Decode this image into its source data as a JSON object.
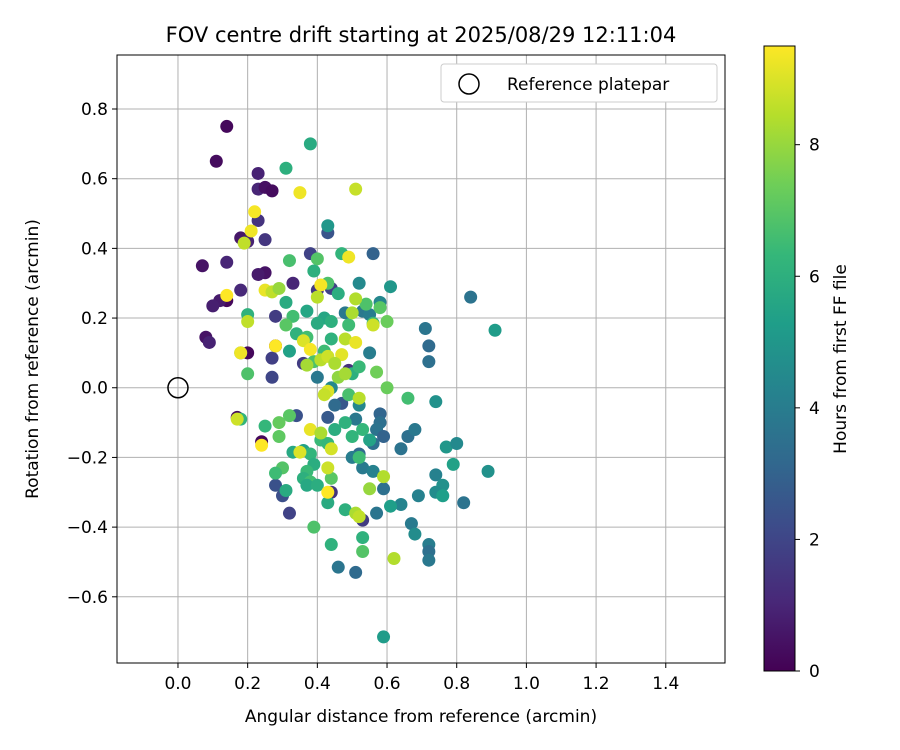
{
  "chart_data": {
    "type": "scatter",
    "title": "FOV centre drift starting at 2025/08/29 12:11:04",
    "xlabel": "Angular distance from reference (arcmin)",
    "ylabel": "Rotation from reference (arcmin)",
    "colorbar_label": "Hours from first FF file",
    "xlim": [
      -0.175,
      1.57
    ],
    "ylim": [
      -0.79,
      0.955
    ],
    "x_ticks": [
      "0.0",
      "0.2",
      "0.4",
      "0.6",
      "0.8",
      "1.0",
      "1.2",
      "1.4"
    ],
    "y_ticks": [
      "0.8",
      "0.6",
      "0.4",
      "0.2",
      "0.0",
      "−0.2",
      "−0.4",
      "−0.6"
    ],
    "colorbar_ticks": [
      "0",
      "2",
      "4",
      "6",
      "8"
    ],
    "colorbar_range": [
      0,
      9.5
    ],
    "colormap": [
      "#440154",
      "#482878",
      "#3e4989",
      "#31688e",
      "#26828e",
      "#1f9e89",
      "#35b779",
      "#6ece58",
      "#b5de2b",
      "#fde725"
    ],
    "grid": true,
    "legend": {
      "position": "top-right",
      "entries": [
        "Reference platepar"
      ]
    },
    "reference": {
      "x": 0.0,
      "y": 0.0
    },
    "points": [
      {
        "x": 0.14,
        "y": 0.75,
        "h": 0.2
      },
      {
        "x": 0.11,
        "y": 0.65,
        "h": 0.3
      },
      {
        "x": 0.23,
        "y": 0.615,
        "h": 0.9
      },
      {
        "x": 0.23,
        "y": 0.57,
        "h": 1.0
      },
      {
        "x": 0.25,
        "y": 0.575,
        "h": 0.4
      },
      {
        "x": 0.27,
        "y": 0.565,
        "h": 0.3
      },
      {
        "x": 0.23,
        "y": 0.48,
        "h": 1.4
      },
      {
        "x": 0.18,
        "y": 0.43,
        "h": 0.6
      },
      {
        "x": 0.25,
        "y": 0.425,
        "h": 1.5
      },
      {
        "x": 0.2,
        "y": 0.42,
        "h": 0.9
      },
      {
        "x": 0.14,
        "y": 0.36,
        "h": 1.0
      },
      {
        "x": 0.07,
        "y": 0.35,
        "h": 0.5
      },
      {
        "x": 0.25,
        "y": 0.33,
        "h": 0.5
      },
      {
        "x": 0.23,
        "y": 0.325,
        "h": 0.7
      },
      {
        "x": 0.33,
        "y": 0.3,
        "h": 1.0
      },
      {
        "x": 0.18,
        "y": 0.28,
        "h": 1.1
      },
      {
        "x": 0.14,
        "y": 0.25,
        "h": 0.2
      },
      {
        "x": 0.12,
        "y": 0.25,
        "h": 0.7
      },
      {
        "x": 0.1,
        "y": 0.235,
        "h": 0.8
      },
      {
        "x": 0.28,
        "y": 0.205,
        "h": 1.7
      },
      {
        "x": 0.08,
        "y": 0.145,
        "h": 0.5
      },
      {
        "x": 0.09,
        "y": 0.13,
        "h": 0.9
      },
      {
        "x": 0.28,
        "y": 0.12,
        "h": 0.3
      },
      {
        "x": 0.2,
        "y": 0.1,
        "h": 0.2
      },
      {
        "x": 0.27,
        "y": 0.085,
        "h": 1.8
      },
      {
        "x": 0.27,
        "y": 0.03,
        "h": 2.0
      },
      {
        "x": 0.17,
        "y": -0.085,
        "h": 0.3
      },
      {
        "x": 0.24,
        "y": -0.155,
        "h": 0.2
      },
      {
        "x": 0.38,
        "y": 0.385,
        "h": 1.9
      },
      {
        "x": 0.43,
        "y": 0.445,
        "h": 2.5
      },
      {
        "x": 0.44,
        "y": 0.285,
        "h": 1.9
      },
      {
        "x": 0.4,
        "y": 0.28,
        "h": 1.6
      },
      {
        "x": 0.49,
        "y": 0.05,
        "h": 1.3
      },
      {
        "x": 0.36,
        "y": 0.07,
        "h": 1.7
      },
      {
        "x": 0.34,
        "y": -0.08,
        "h": 2.4
      },
      {
        "x": 0.43,
        "y": -0.085,
        "h": 2.7
      },
      {
        "x": 0.47,
        "y": -0.045,
        "h": 2.6
      },
      {
        "x": 0.28,
        "y": -0.28,
        "h": 2.4
      },
      {
        "x": 0.3,
        "y": -0.31,
        "h": 2.3
      },
      {
        "x": 0.32,
        "y": -0.36,
        "h": 1.9
      },
      {
        "x": 0.44,
        "y": -0.3,
        "h": 1.5
      },
      {
        "x": 0.53,
        "y": -0.38,
        "h": 1.7
      },
      {
        "x": 0.56,
        "y": 0.385,
        "h": 3.0
      },
      {
        "x": 0.52,
        "y": 0.3,
        "h": 4.5
      },
      {
        "x": 0.53,
        "y": 0.22,
        "h": 3.8
      },
      {
        "x": 0.55,
        "y": 0.21,
        "h": 4.0
      },
      {
        "x": 0.58,
        "y": 0.245,
        "h": 4.4
      },
      {
        "x": 0.48,
        "y": 0.215,
        "h": 3.8
      },
      {
        "x": 0.84,
        "y": 0.26,
        "h": 3.6
      },
      {
        "x": 0.71,
        "y": 0.17,
        "h": 3.7
      },
      {
        "x": 0.72,
        "y": 0.12,
        "h": 3.3
      },
      {
        "x": 0.72,
        "y": 0.075,
        "h": 3.5
      },
      {
        "x": 0.55,
        "y": 0.1,
        "h": 4.0
      },
      {
        "x": 0.4,
        "y": 0.03,
        "h": 3.8
      },
      {
        "x": 0.44,
        "y": 0.0,
        "h": 4.5
      },
      {
        "x": 0.45,
        "y": -0.05,
        "h": 3.3
      },
      {
        "x": 0.52,
        "y": -0.05,
        "h": 4.4
      },
      {
        "x": 0.51,
        "y": -0.09,
        "h": 3.8
      },
      {
        "x": 0.58,
        "y": -0.075,
        "h": 3.1
      },
      {
        "x": 0.58,
        "y": -0.1,
        "h": 3.5
      },
      {
        "x": 0.57,
        "y": -0.12,
        "h": 3.6
      },
      {
        "x": 0.59,
        "y": -0.14,
        "h": 3.0
      },
      {
        "x": 0.56,
        "y": -0.16,
        "h": 3.5
      },
      {
        "x": 0.52,
        "y": -0.19,
        "h": 3.3
      },
      {
        "x": 0.5,
        "y": -0.2,
        "h": 4.0
      },
      {
        "x": 0.53,
        "y": -0.23,
        "h": 3.9
      },
      {
        "x": 0.56,
        "y": -0.24,
        "h": 4.2
      },
      {
        "x": 0.59,
        "y": -0.29,
        "h": 3.5
      },
      {
        "x": 0.64,
        "y": -0.175,
        "h": 3.6
      },
      {
        "x": 0.66,
        "y": -0.14,
        "h": 3.5
      },
      {
        "x": 0.68,
        "y": -0.12,
        "h": 3.8
      },
      {
        "x": 0.74,
        "y": -0.04,
        "h": 4.8
      },
      {
        "x": 0.77,
        "y": -0.17,
        "h": 5.0
      },
      {
        "x": 0.8,
        "y": -0.16,
        "h": 4.5
      },
      {
        "x": 0.79,
        "y": -0.22,
        "h": 5.4
      },
      {
        "x": 0.74,
        "y": -0.25,
        "h": 4.2
      },
      {
        "x": 0.76,
        "y": -0.28,
        "h": 4.8
      },
      {
        "x": 0.74,
        "y": -0.3,
        "h": 4.6
      },
      {
        "x": 0.76,
        "y": -0.31,
        "h": 5.3
      },
      {
        "x": 0.69,
        "y": -0.31,
        "h": 4.2
      },
      {
        "x": 0.64,
        "y": -0.335,
        "h": 4.3
      },
      {
        "x": 0.61,
        "y": -0.34,
        "h": 5.3
      },
      {
        "x": 0.57,
        "y": -0.36,
        "h": 3.7
      },
      {
        "x": 0.67,
        "y": -0.39,
        "h": 3.9
      },
      {
        "x": 0.68,
        "y": -0.42,
        "h": 4.6
      },
      {
        "x": 0.72,
        "y": -0.45,
        "h": 4.0
      },
      {
        "x": 0.72,
        "y": -0.47,
        "h": 3.5
      },
      {
        "x": 0.72,
        "y": -0.495,
        "h": 3.8
      },
      {
        "x": 0.82,
        "y": -0.33,
        "h": 3.6
      },
      {
        "x": 0.89,
        "y": -0.24,
        "h": 4.8
      },
      {
        "x": 0.51,
        "y": -0.53,
        "h": 3.3
      },
      {
        "x": 0.46,
        "y": -0.515,
        "h": 3.7
      },
      {
        "x": 0.59,
        "y": -0.715,
        "h": 5.2
      },
      {
        "x": 0.61,
        "y": 0.29,
        "h": 5.0
      },
      {
        "x": 0.91,
        "y": 0.165,
        "h": 5.2
      },
      {
        "x": 0.38,
        "y": 0.7,
        "h": 5.8
      },
      {
        "x": 0.31,
        "y": 0.63,
        "h": 6.0
      },
      {
        "x": 0.43,
        "y": 0.465,
        "h": 5.0
      },
      {
        "x": 0.47,
        "y": 0.385,
        "h": 6.2
      },
      {
        "x": 0.4,
        "y": 0.37,
        "h": 6.9
      },
      {
        "x": 0.32,
        "y": 0.365,
        "h": 6.7
      },
      {
        "x": 0.39,
        "y": 0.335,
        "h": 6.0
      },
      {
        "x": 0.43,
        "y": 0.3,
        "h": 6.8
      },
      {
        "x": 0.46,
        "y": 0.27,
        "h": 5.9
      },
      {
        "x": 0.31,
        "y": 0.245,
        "h": 5.8
      },
      {
        "x": 0.37,
        "y": 0.22,
        "h": 5.6
      },
      {
        "x": 0.33,
        "y": 0.205,
        "h": 6.6
      },
      {
        "x": 0.42,
        "y": 0.2,
        "h": 5.6
      },
      {
        "x": 0.44,
        "y": 0.19,
        "h": 6.0
      },
      {
        "x": 0.4,
        "y": 0.185,
        "h": 5.8
      },
      {
        "x": 0.31,
        "y": 0.18,
        "h": 7.0
      },
      {
        "x": 0.49,
        "y": 0.18,
        "h": 6.5
      },
      {
        "x": 0.56,
        "y": 0.185,
        "h": 6.4
      },
      {
        "x": 0.6,
        "y": 0.19,
        "h": 7.3
      },
      {
        "x": 0.34,
        "y": 0.155,
        "h": 6.1
      },
      {
        "x": 0.37,
        "y": 0.145,
        "h": 6.6
      },
      {
        "x": 0.44,
        "y": 0.14,
        "h": 6.1
      },
      {
        "x": 0.32,
        "y": 0.105,
        "h": 5.4
      },
      {
        "x": 0.42,
        "y": 0.105,
        "h": 6.5
      },
      {
        "x": 0.39,
        "y": 0.075,
        "h": 6.8
      },
      {
        "x": 0.5,
        "y": 0.04,
        "h": 6.0
      },
      {
        "x": 0.57,
        "y": 0.045,
        "h": 7.4
      },
      {
        "x": 0.6,
        "y": 0.0,
        "h": 7.3
      },
      {
        "x": 0.66,
        "y": -0.03,
        "h": 6.6
      },
      {
        "x": 0.2,
        "y": 0.21,
        "h": 6.1
      },
      {
        "x": 0.18,
        "y": 0.1,
        "h": 6.7
      },
      {
        "x": 0.2,
        "y": 0.04,
        "h": 6.8
      },
      {
        "x": 0.18,
        "y": -0.09,
        "h": 6.2
      },
      {
        "x": 0.25,
        "y": -0.11,
        "h": 6.3
      },
      {
        "x": 0.29,
        "y": -0.1,
        "h": 7.2
      },
      {
        "x": 0.29,
        "y": -0.14,
        "h": 7.1
      },
      {
        "x": 0.32,
        "y": -0.08,
        "h": 7.0
      },
      {
        "x": 0.33,
        "y": -0.185,
        "h": 5.7
      },
      {
        "x": 0.36,
        "y": -0.18,
        "h": 5.4
      },
      {
        "x": 0.38,
        "y": -0.19,
        "h": 6.2
      },
      {
        "x": 0.39,
        "y": -0.22,
        "h": 5.9
      },
      {
        "x": 0.37,
        "y": -0.24,
        "h": 6.4
      },
      {
        "x": 0.3,
        "y": -0.23,
        "h": 6.9
      },
      {
        "x": 0.28,
        "y": -0.245,
        "h": 6.5
      },
      {
        "x": 0.36,
        "y": -0.26,
        "h": 6.0
      },
      {
        "x": 0.38,
        "y": -0.27,
        "h": 6.6
      },
      {
        "x": 0.37,
        "y": -0.28,
        "h": 5.7
      },
      {
        "x": 0.4,
        "y": -0.28,
        "h": 5.9
      },
      {
        "x": 0.31,
        "y": -0.295,
        "h": 5.8
      },
      {
        "x": 0.43,
        "y": -0.33,
        "h": 5.8
      },
      {
        "x": 0.39,
        "y": -0.4,
        "h": 6.8
      },
      {
        "x": 0.44,
        "y": -0.45,
        "h": 6.1
      },
      {
        "x": 0.48,
        "y": -0.35,
        "h": 6.0
      },
      {
        "x": 0.53,
        "y": -0.43,
        "h": 6.1
      },
      {
        "x": 0.53,
        "y": -0.47,
        "h": 6.9
      },
      {
        "x": 0.41,
        "y": -0.15,
        "h": 6.4
      },
      {
        "x": 0.43,
        "y": -0.16,
        "h": 6.3
      },
      {
        "x": 0.45,
        "y": -0.12,
        "h": 5.9
      },
      {
        "x": 0.48,
        "y": -0.1,
        "h": 6.1
      },
      {
        "x": 0.5,
        "y": -0.14,
        "h": 6.2
      },
      {
        "x": 0.52,
        "y": -0.2,
        "h": 6.5
      },
      {
        "x": 0.53,
        "y": -0.12,
        "h": 6.3
      },
      {
        "x": 0.55,
        "y": -0.15,
        "h": 5.5
      },
      {
        "x": 0.44,
        "y": -0.26,
        "h": 7.0
      },
      {
        "x": 0.49,
        "y": -0.02,
        "h": 6.7
      },
      {
        "x": 0.52,
        "y": 0.06,
        "h": 6.4
      },
      {
        "x": 0.54,
        "y": 0.24,
        "h": 6.8
      },
      {
        "x": 0.58,
        "y": 0.23,
        "h": 7.0
      },
      {
        "x": 0.35,
        "y": 0.56,
        "h": 9.3
      },
      {
        "x": 0.51,
        "y": 0.57,
        "h": 8.7
      },
      {
        "x": 0.22,
        "y": 0.505,
        "h": 9.4
      },
      {
        "x": 0.21,
        "y": 0.45,
        "h": 9.3
      },
      {
        "x": 0.19,
        "y": 0.415,
        "h": 8.6
      },
      {
        "x": 0.49,
        "y": 0.375,
        "h": 9.3
      },
      {
        "x": 0.41,
        "y": 0.295,
        "h": 9.4
      },
      {
        "x": 0.25,
        "y": 0.28,
        "h": 9.2
      },
      {
        "x": 0.27,
        "y": 0.275,
        "h": 8.6
      },
      {
        "x": 0.14,
        "y": 0.265,
        "h": 9.5
      },
      {
        "x": 0.29,
        "y": 0.285,
        "h": 8.0
      },
      {
        "x": 0.4,
        "y": 0.26,
        "h": 8.5
      },
      {
        "x": 0.51,
        "y": 0.255,
        "h": 8.4
      },
      {
        "x": 0.5,
        "y": 0.215,
        "h": 8.3
      },
      {
        "x": 0.48,
        "y": 0.14,
        "h": 8.5
      },
      {
        "x": 0.51,
        "y": 0.13,
        "h": 9.2
      },
      {
        "x": 0.56,
        "y": 0.18,
        "h": 8.8
      },
      {
        "x": 0.2,
        "y": 0.19,
        "h": 8.6
      },
      {
        "x": 0.36,
        "y": 0.135,
        "h": 9.0
      },
      {
        "x": 0.38,
        "y": 0.11,
        "h": 9.4
      },
      {
        "x": 0.41,
        "y": 0.08,
        "h": 8.5
      },
      {
        "x": 0.43,
        "y": 0.09,
        "h": 8.8
      },
      {
        "x": 0.47,
        "y": 0.095,
        "h": 9.1
      },
      {
        "x": 0.45,
        "y": 0.07,
        "h": 8.3
      },
      {
        "x": 0.37,
        "y": 0.065,
        "h": 8.2
      },
      {
        "x": 0.46,
        "y": 0.03,
        "h": 7.9
      },
      {
        "x": 0.48,
        "y": 0.04,
        "h": 8.2
      },
      {
        "x": 0.43,
        "y": -0.01,
        "h": 9.0
      },
      {
        "x": 0.52,
        "y": -0.03,
        "h": 8.5
      },
      {
        "x": 0.42,
        "y": -0.02,
        "h": 8.7
      },
      {
        "x": 0.18,
        "y": 0.1,
        "h": 9.3
      },
      {
        "x": 0.28,
        "y": 0.12,
        "h": 9.5
      },
      {
        "x": 0.24,
        "y": -0.165,
        "h": 9.5
      },
      {
        "x": 0.17,
        "y": -0.09,
        "h": 8.8
      },
      {
        "x": 0.38,
        "y": -0.12,
        "h": 9.2
      },
      {
        "x": 0.41,
        "y": -0.13,
        "h": 8.3
      },
      {
        "x": 0.44,
        "y": -0.175,
        "h": 8.9
      },
      {
        "x": 0.35,
        "y": -0.185,
        "h": 9.0
      },
      {
        "x": 0.43,
        "y": -0.23,
        "h": 8.8
      },
      {
        "x": 0.43,
        "y": -0.3,
        "h": 9.5
      },
      {
        "x": 0.55,
        "y": -0.29,
        "h": 8.0
      },
      {
        "x": 0.51,
        "y": -0.36,
        "h": 8.3
      },
      {
        "x": 0.52,
        "y": -0.37,
        "h": 8.6
      },
      {
        "x": 0.59,
        "y": -0.255,
        "h": 8.4
      },
      {
        "x": 0.62,
        "y": -0.49,
        "h": 8.4
      }
    ]
  }
}
